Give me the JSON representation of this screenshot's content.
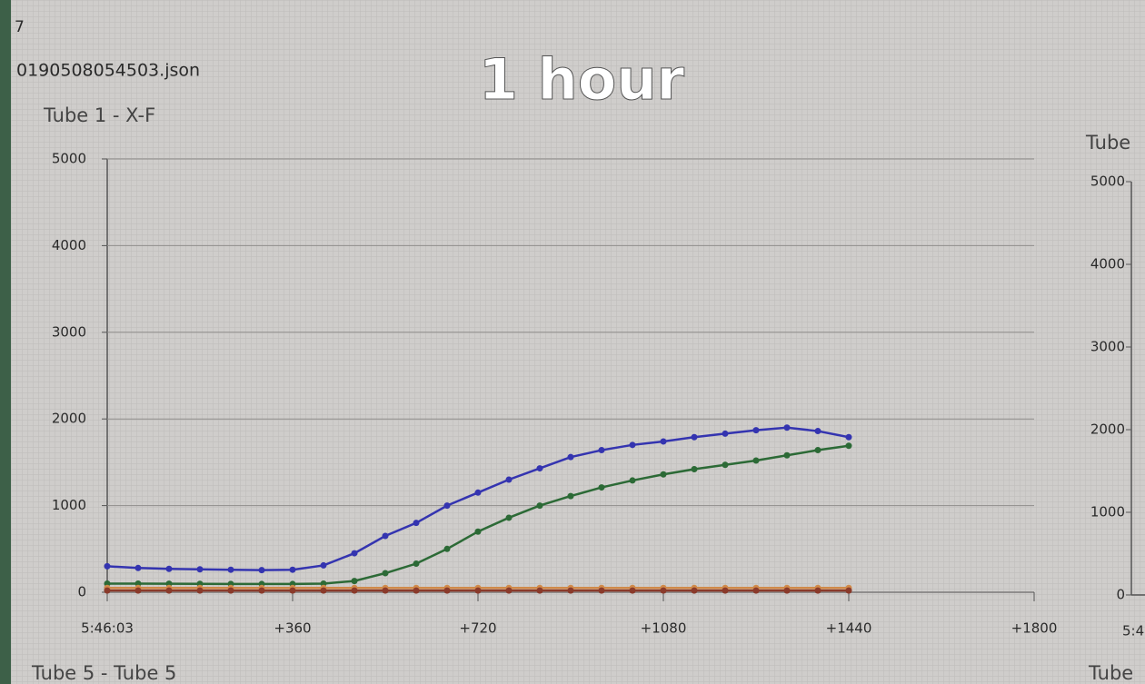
{
  "overlay_title": "1 hour",
  "header": {
    "line1": "7",
    "file": "0190508054503.json"
  },
  "footer": {
    "left": "Tube 5 - Tube 5",
    "right": "Tube"
  },
  "chart_data": [
    {
      "type": "line",
      "title": "Tube 1 - X-F",
      "x": [
        0,
        60,
        120,
        180,
        240,
        300,
        360,
        420,
        480,
        540,
        600,
        660,
        720,
        780,
        840,
        900,
        960,
        1020,
        1080,
        1140,
        1200,
        1260,
        1320,
        1380,
        1440
      ],
      "series": [
        {
          "color": "#3434b0",
          "values": [
            300,
            280,
            270,
            265,
            260,
            255,
            260,
            310,
            450,
            650,
            800,
            1000,
            1150,
            1300,
            1430,
            1560,
            1640,
            1700,
            1740,
            1790,
            1830,
            1870,
            1900,
            1860,
            1790
          ]
        },
        {
          "color": "#2c6a36",
          "values": [
            100,
            100,
            98,
            97,
            96,
            95,
            95,
            100,
            130,
            220,
            330,
            500,
            700,
            860,
            1000,
            1110,
            1210,
            1290,
            1360,
            1420,
            1470,
            1520,
            1580,
            1640,
            1690
          ]
        },
        {
          "color": "#d08a4a",
          "values": [
            50,
            50,
            50,
            50,
            50,
            50,
            50,
            50,
            50,
            50,
            50,
            50,
            50,
            50,
            50,
            50,
            50,
            50,
            50,
            50,
            50,
            50,
            50,
            50,
            50
          ]
        },
        {
          "color": "#8a3a2a",
          "values": [
            20,
            20,
            20,
            20,
            20,
            20,
            20,
            20,
            20,
            20,
            20,
            20,
            20,
            20,
            20,
            20,
            20,
            20,
            20,
            20,
            20,
            20,
            20,
            20,
            20
          ]
        }
      ],
      "xlim": [
        0,
        1800
      ],
      "xticks": [
        {
          "value": 0,
          "label": "5:46:03"
        },
        {
          "value": 360,
          "label": "+360"
        },
        {
          "value": 720,
          "label": "+720"
        },
        {
          "value": 1080,
          "label": "+1080"
        },
        {
          "value": 1440,
          "label": "+1440"
        },
        {
          "value": 1800,
          "label": "+1800"
        }
      ],
      "ylim": [
        0,
        5000
      ],
      "yticks": [
        0,
        1000,
        2000,
        3000,
        4000,
        5000
      ],
      "grid": true
    },
    {
      "type": "line",
      "title": "Tube",
      "xticks": [
        {
          "value": 0,
          "label": "5:4"
        }
      ],
      "ylim": [
        0,
        5000
      ],
      "yticks": [
        0,
        1000,
        2000,
        3000,
        4000,
        5000
      ],
      "grid": false
    }
  ]
}
